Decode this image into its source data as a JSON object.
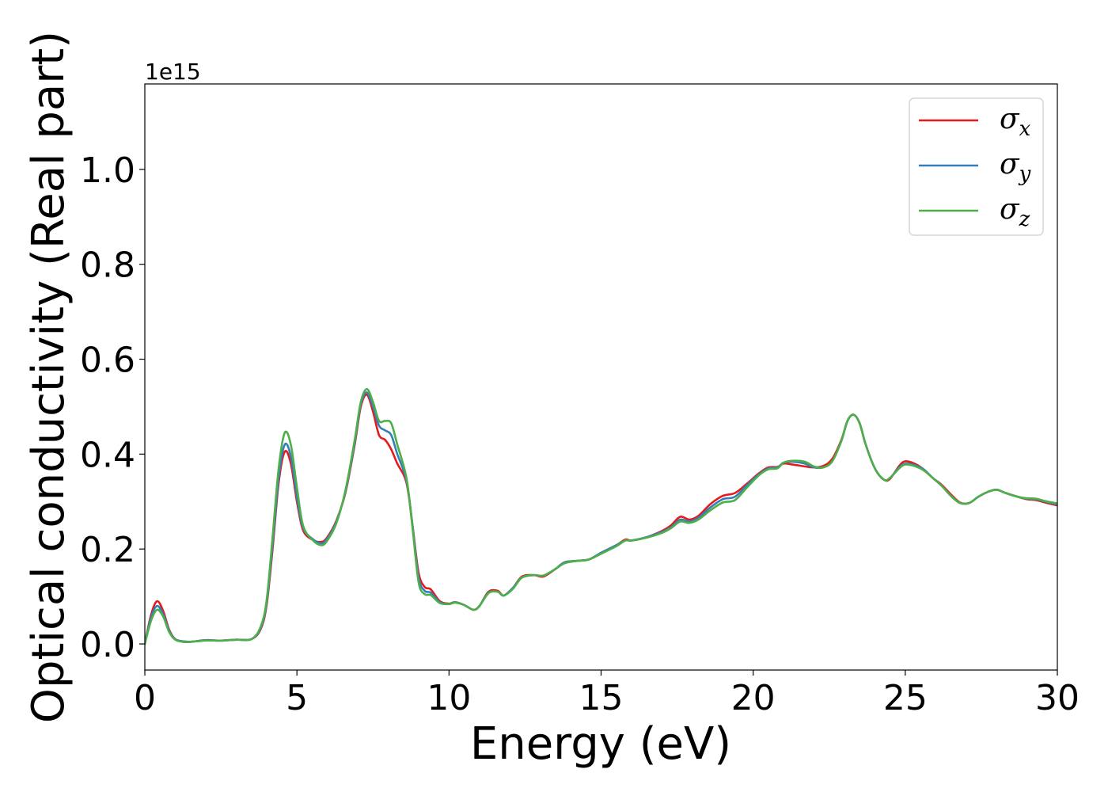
{
  "chart_data": {
    "type": "line",
    "xlabel": "Energy (eV)",
    "ylabel": "Optical conductivity (Real part)",
    "y_offset_label": "1e15",
    "xlim": [
      0,
      30
    ],
    "ylim": [
      -0.055,
      1.18
    ],
    "x_ticks": [
      0,
      5,
      10,
      15,
      20,
      25,
      30
    ],
    "x_tick_labels": [
      "0",
      "5",
      "10",
      "15",
      "20",
      "25",
      "30"
    ],
    "y_ticks": [
      0.0,
      0.2,
      0.4,
      0.6,
      0.8,
      1.0
    ],
    "y_tick_labels": [
      "0.0",
      "0.2",
      "0.4",
      "0.6",
      "0.8",
      "1.0"
    ],
    "grid": false,
    "legend_position": "top-right",
    "series": [
      {
        "name": "σ",
        "subscript": "x",
        "color": "#e41a1c",
        "x": [
          0,
          0.2,
          0.4,
          0.6,
          0.8,
          1.0,
          1.3,
          1.6,
          2.0,
          2.5,
          3.0,
          3.5,
          3.8,
          4.0,
          4.2,
          4.4,
          4.6,
          4.8,
          5.0,
          5.2,
          5.5,
          5.8,
          6.0,
          6.3,
          6.6,
          6.9,
          7.1,
          7.3,
          7.5,
          7.7,
          7.9,
          8.1,
          8.3,
          8.6,
          8.8,
          9.0,
          9.2,
          9.4,
          9.7,
          10.0,
          10.2,
          10.5,
          10.8,
          11.0,
          11.3,
          11.6,
          11.8,
          12.1,
          12.4,
          12.8,
          13.1,
          13.5,
          13.8,
          14.2,
          14.6,
          15.0,
          15.5,
          15.8,
          16.0,
          16.5,
          17.0,
          17.3,
          17.6,
          17.9,
          18.2,
          18.6,
          19.0,
          19.4,
          19.8,
          20.2,
          20.5,
          20.8,
          21.0,
          21.3,
          21.7,
          22.0,
          22.3,
          22.6,
          22.9,
          23.1,
          23.3,
          23.5,
          23.7,
          24.0,
          24.3,
          24.5,
          24.8,
          25.0,
          25.3,
          25.6,
          25.9,
          26.2,
          26.5,
          26.8,
          27.1,
          27.4,
          27.7,
          28.0,
          28.3,
          28.7,
          29.0,
          29.3,
          29.6,
          30.0
        ],
        "y": [
          0.0,
          0.06,
          0.09,
          0.07,
          0.03,
          0.01,
          0.005,
          0.005,
          0.008,
          0.007,
          0.009,
          0.01,
          0.03,
          0.08,
          0.2,
          0.34,
          0.405,
          0.38,
          0.3,
          0.24,
          0.22,
          0.215,
          0.225,
          0.26,
          0.32,
          0.42,
          0.5,
          0.525,
          0.49,
          0.44,
          0.43,
          0.41,
          0.38,
          0.34,
          0.25,
          0.15,
          0.12,
          0.115,
          0.09,
          0.085,
          0.088,
          0.082,
          0.072,
          0.08,
          0.11,
          0.112,
          0.102,
          0.118,
          0.142,
          0.145,
          0.142,
          0.158,
          0.172,
          0.175,
          0.178,
          0.192,
          0.208,
          0.22,
          0.218,
          0.225,
          0.238,
          0.25,
          0.268,
          0.262,
          0.27,
          0.295,
          0.312,
          0.318,
          0.338,
          0.36,
          0.372,
          0.373,
          0.38,
          0.378,
          0.374,
          0.372,
          0.375,
          0.39,
          0.43,
          0.47,
          0.483,
          0.465,
          0.42,
          0.37,
          0.346,
          0.348,
          0.375,
          0.385,
          0.38,
          0.368,
          0.35,
          0.335,
          0.315,
          0.298,
          0.297,
          0.31,
          0.32,
          0.325,
          0.318,
          0.31,
          0.305,
          0.303,
          0.298,
          0.292
        ]
      },
      {
        "name": "σ",
        "subscript": "y",
        "color": "#377eb8",
        "x": [
          0,
          0.2,
          0.4,
          0.6,
          0.8,
          1.0,
          1.3,
          1.6,
          2.0,
          2.5,
          3.0,
          3.5,
          3.8,
          4.0,
          4.2,
          4.4,
          4.6,
          4.8,
          5.0,
          5.2,
          5.5,
          5.8,
          6.0,
          6.3,
          6.6,
          6.9,
          7.1,
          7.3,
          7.5,
          7.7,
          7.9,
          8.1,
          8.3,
          8.6,
          8.8,
          9.0,
          9.2,
          9.4,
          9.7,
          10.0,
          10.2,
          10.5,
          10.8,
          11.0,
          11.3,
          11.6,
          11.8,
          12.1,
          12.4,
          12.8,
          13.1,
          13.5,
          13.8,
          14.2,
          14.6,
          15.0,
          15.5,
          15.8,
          16.0,
          16.5,
          17.0,
          17.3,
          17.6,
          17.9,
          18.2,
          18.6,
          19.0,
          19.4,
          19.8,
          20.2,
          20.5,
          20.8,
          21.0,
          21.3,
          21.7,
          22.0,
          22.3,
          22.6,
          22.9,
          23.1,
          23.3,
          23.5,
          23.7,
          24.0,
          24.3,
          24.5,
          24.8,
          25.0,
          25.3,
          25.6,
          25.9,
          26.2,
          26.5,
          26.8,
          27.1,
          27.4,
          27.7,
          28.0,
          28.3,
          28.7,
          29.0,
          29.3,
          29.6,
          30.0
        ],
        "y": [
          0.0,
          0.055,
          0.08,
          0.063,
          0.028,
          0.01,
          0.005,
          0.005,
          0.008,
          0.007,
          0.009,
          0.01,
          0.032,
          0.085,
          0.21,
          0.35,
          0.42,
          0.395,
          0.31,
          0.245,
          0.222,
          0.212,
          0.222,
          0.258,
          0.322,
          0.425,
          0.505,
          0.53,
          0.5,
          0.46,
          0.45,
          0.44,
          0.4,
          0.345,
          0.25,
          0.14,
          0.112,
          0.108,
          0.088,
          0.084,
          0.088,
          0.082,
          0.072,
          0.08,
          0.108,
          0.11,
          0.102,
          0.118,
          0.14,
          0.145,
          0.144,
          0.158,
          0.172,
          0.175,
          0.178,
          0.192,
          0.208,
          0.218,
          0.218,
          0.225,
          0.236,
          0.246,
          0.262,
          0.258,
          0.266,
          0.288,
          0.305,
          0.31,
          0.335,
          0.358,
          0.37,
          0.372,
          0.382,
          0.384,
          0.38,
          0.372,
          0.372,
          0.385,
          0.428,
          0.47,
          0.483,
          0.465,
          0.42,
          0.37,
          0.346,
          0.35,
          0.372,
          0.38,
          0.377,
          0.368,
          0.35,
          0.333,
          0.312,
          0.297,
          0.297,
          0.31,
          0.32,
          0.325,
          0.318,
          0.31,
          0.306,
          0.305,
          0.3,
          0.294
        ]
      },
      {
        "name": "σ",
        "subscript": "z",
        "color": "#4daf4a",
        "x": [
          0,
          0.2,
          0.4,
          0.6,
          0.8,
          1.0,
          1.3,
          1.6,
          2.0,
          2.5,
          3.0,
          3.5,
          3.8,
          4.0,
          4.2,
          4.4,
          4.6,
          4.8,
          5.0,
          5.2,
          5.5,
          5.8,
          6.0,
          6.3,
          6.6,
          6.9,
          7.1,
          7.3,
          7.5,
          7.7,
          7.9,
          8.1,
          8.3,
          8.6,
          8.8,
          9.0,
          9.2,
          9.4,
          9.7,
          10.0,
          10.2,
          10.5,
          10.8,
          11.0,
          11.3,
          11.6,
          11.8,
          12.1,
          12.4,
          12.8,
          13.1,
          13.5,
          13.8,
          14.2,
          14.6,
          15.0,
          15.5,
          15.8,
          16.0,
          16.5,
          17.0,
          17.3,
          17.6,
          17.9,
          18.2,
          18.6,
          19.0,
          19.4,
          19.8,
          20.2,
          20.5,
          20.8,
          21.0,
          21.3,
          21.7,
          22.0,
          22.3,
          22.6,
          22.9,
          23.1,
          23.3,
          23.5,
          23.7,
          24.0,
          24.3,
          24.5,
          24.8,
          25.0,
          25.3,
          25.6,
          25.9,
          26.2,
          26.5,
          26.8,
          27.1,
          27.4,
          27.7,
          28.0,
          28.3,
          28.7,
          29.0,
          29.3,
          29.6,
          30.0
        ],
        "y": [
          0.0,
          0.048,
          0.072,
          0.058,
          0.025,
          0.009,
          0.004,
          0.005,
          0.007,
          0.007,
          0.009,
          0.01,
          0.035,
          0.09,
          0.225,
          0.37,
          0.445,
          0.42,
          0.33,
          0.25,
          0.22,
          0.208,
          0.218,
          0.255,
          0.325,
          0.43,
          0.51,
          0.537,
          0.51,
          0.47,
          0.47,
          0.465,
          0.42,
          0.35,
          0.245,
          0.13,
          0.105,
          0.103,
          0.086,
          0.084,
          0.087,
          0.082,
          0.072,
          0.08,
          0.107,
          0.11,
          0.102,
          0.116,
          0.14,
          0.145,
          0.144,
          0.158,
          0.17,
          0.175,
          0.178,
          0.19,
          0.206,
          0.218,
          0.218,
          0.224,
          0.234,
          0.244,
          0.258,
          0.255,
          0.262,
          0.282,
          0.298,
          0.303,
          0.33,
          0.356,
          0.368,
          0.37,
          0.382,
          0.386,
          0.384,
          0.374,
          0.372,
          0.385,
          0.428,
          0.47,
          0.483,
          0.465,
          0.42,
          0.37,
          0.346,
          0.35,
          0.37,
          0.378,
          0.375,
          0.366,
          0.35,
          0.333,
          0.312,
          0.297,
          0.297,
          0.31,
          0.32,
          0.325,
          0.318,
          0.31,
          0.307,
          0.306,
          0.301,
          0.296
        ]
      }
    ]
  }
}
